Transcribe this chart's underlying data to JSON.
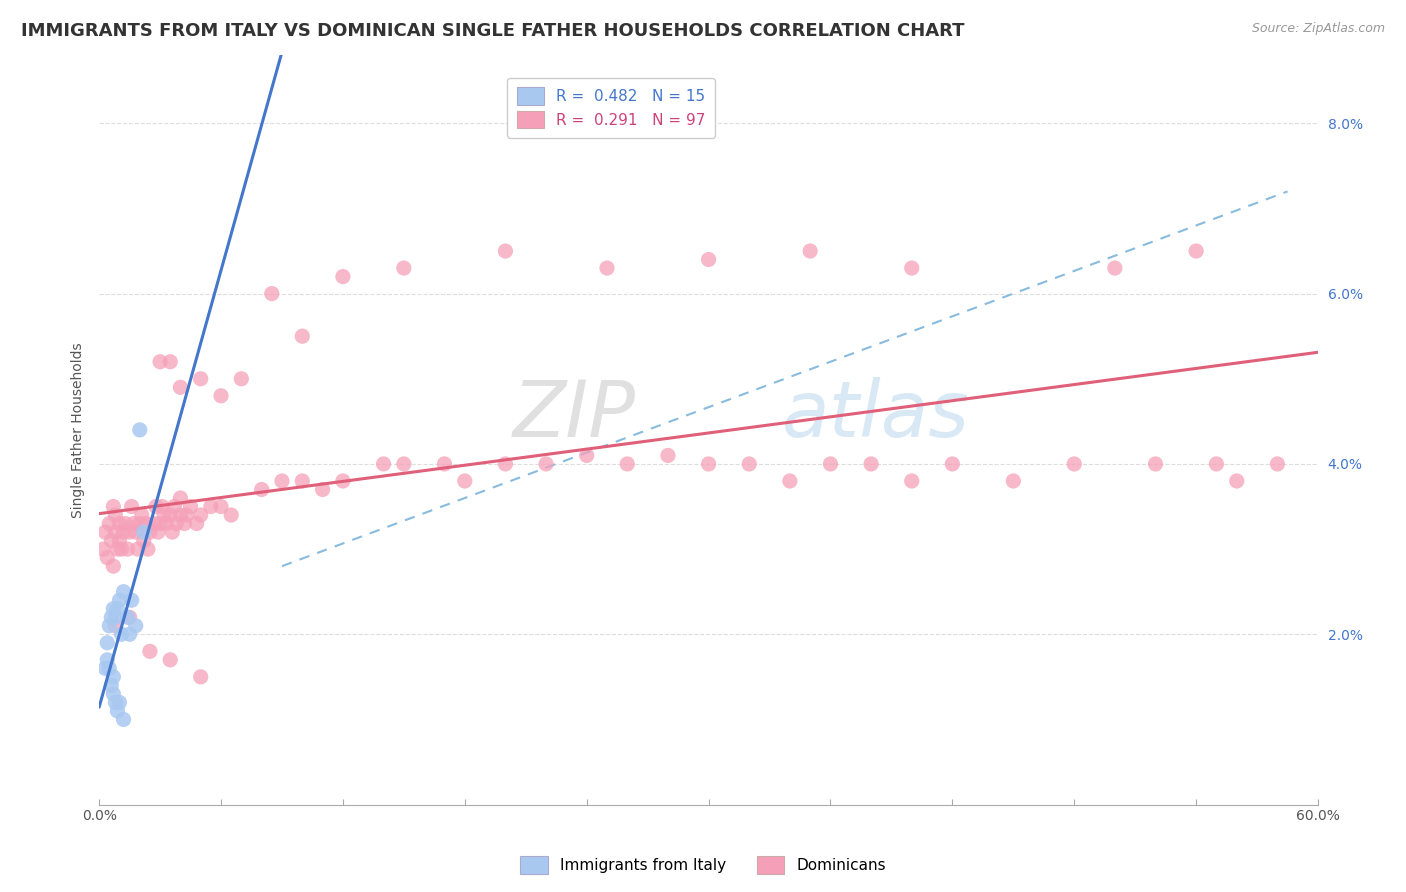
{
  "title": "IMMIGRANTS FROM ITALY VS DOMINICAN SINGLE FATHER HOUSEHOLDS CORRELATION CHART",
  "source_text": "Source: ZipAtlas.com",
  "ylabel": "Single Father Households",
  "xmin": 0.0,
  "xmax": 0.6,
  "ymin": 0.0,
  "ymax": 0.088,
  "yticks": [
    0.02,
    0.04,
    0.06,
    0.08
  ],
  "ytick_labels": [
    "2.0%",
    "4.0%",
    "6.0%",
    "8.0%"
  ],
  "legend_italy_label": "Immigrants from Italy",
  "legend_dominicans_label": "Dominicans",
  "italy_R": "0.482",
  "italy_N": "15",
  "dominicans_R": "0.291",
  "dominicans_N": "97",
  "italy_color": "#a8c8f0",
  "dominicans_color": "#f5a0b8",
  "italy_line_color": "#4477cc",
  "dominicans_line_color": "#e0607a",
  "dashed_line_color": "#88bbdd",
  "background_color": "#ffffff",
  "watermark_color": "#c8dff0",
  "italy_x": [
    0.004,
    0.005,
    0.006,
    0.007,
    0.008,
    0.009,
    0.01,
    0.011,
    0.012,
    0.014,
    0.015,
    0.016,
    0.018,
    0.02,
    0.022
  ],
  "italy_y": [
    0.019,
    0.021,
    0.022,
    0.023,
    0.022,
    0.023,
    0.024,
    0.02,
    0.025,
    0.022,
    0.02,
    0.024,
    0.021,
    0.044,
    0.032
  ],
  "italy_low_x": [
    0.003,
    0.004,
    0.005,
    0.006,
    0.007,
    0.007,
    0.008,
    0.009,
    0.01,
    0.012
  ],
  "italy_low_y": [
    0.016,
    0.017,
    0.016,
    0.014,
    0.015,
    0.013,
    0.012,
    0.011,
    0.012,
    0.01
  ],
  "dom_x": [
    0.002,
    0.003,
    0.004,
    0.005,
    0.006,
    0.007,
    0.007,
    0.008,
    0.008,
    0.009,
    0.01,
    0.01,
    0.011,
    0.012,
    0.013,
    0.014,
    0.015,
    0.016,
    0.017,
    0.018,
    0.019,
    0.02,
    0.021,
    0.022,
    0.023,
    0.024,
    0.025,
    0.027,
    0.028,
    0.029,
    0.03,
    0.031,
    0.032,
    0.033,
    0.035,
    0.036,
    0.037,
    0.038,
    0.04,
    0.04,
    0.042,
    0.043,
    0.045,
    0.048,
    0.05,
    0.055,
    0.06,
    0.065,
    0.08,
    0.09,
    0.1,
    0.11,
    0.12,
    0.14,
    0.15,
    0.17,
    0.18,
    0.2,
    0.22,
    0.24,
    0.26,
    0.28,
    0.3,
    0.32,
    0.34,
    0.36,
    0.38,
    0.4,
    0.42,
    0.45,
    0.48,
    0.52,
    0.55,
    0.56,
    0.58,
    0.03,
    0.035,
    0.04,
    0.05,
    0.06,
    0.07,
    0.085,
    0.1,
    0.12,
    0.15,
    0.2,
    0.25,
    0.3,
    0.35,
    0.4,
    0.5,
    0.54,
    0.008,
    0.015,
    0.025,
    0.035,
    0.05
  ],
  "dom_y": [
    0.03,
    0.032,
    0.029,
    0.033,
    0.031,
    0.035,
    0.028,
    0.032,
    0.034,
    0.03,
    0.031,
    0.033,
    0.03,
    0.032,
    0.033,
    0.03,
    0.032,
    0.035,
    0.033,
    0.032,
    0.03,
    0.033,
    0.034,
    0.031,
    0.033,
    0.03,
    0.032,
    0.033,
    0.035,
    0.032,
    0.033,
    0.035,
    0.034,
    0.033,
    0.034,
    0.032,
    0.035,
    0.033,
    0.034,
    0.036,
    0.033,
    0.034,
    0.035,
    0.033,
    0.034,
    0.035,
    0.035,
    0.034,
    0.037,
    0.038,
    0.038,
    0.037,
    0.038,
    0.04,
    0.04,
    0.04,
    0.038,
    0.04,
    0.04,
    0.041,
    0.04,
    0.041,
    0.04,
    0.04,
    0.038,
    0.04,
    0.04,
    0.038,
    0.04,
    0.038,
    0.04,
    0.04,
    0.04,
    0.038,
    0.04,
    0.052,
    0.052,
    0.049,
    0.05,
    0.048,
    0.05,
    0.06,
    0.055,
    0.062,
    0.063,
    0.065,
    0.063,
    0.064,
    0.065,
    0.063,
    0.063,
    0.065,
    0.021,
    0.022,
    0.018,
    0.017,
    0.015
  ],
  "title_fontsize": 13,
  "axis_label_fontsize": 10,
  "tick_fontsize": 10,
  "legend_fontsize": 11
}
